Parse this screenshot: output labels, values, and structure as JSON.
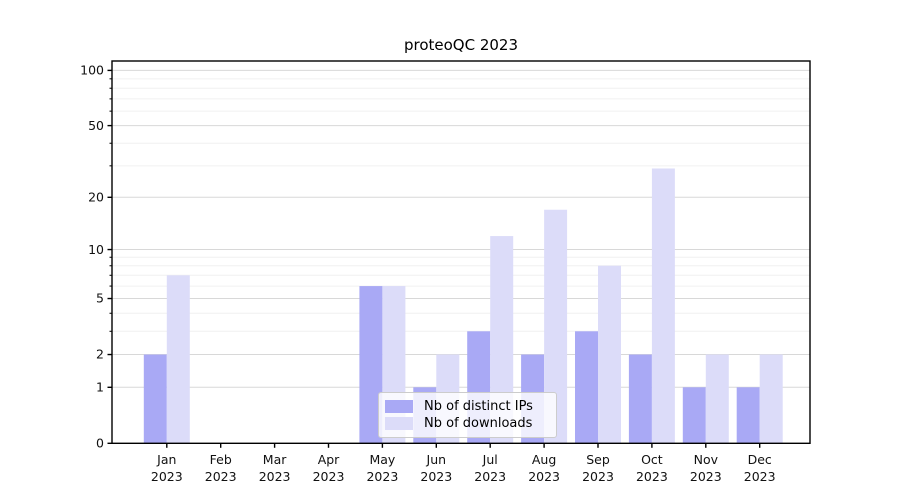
{
  "chart_data": {
    "type": "bar",
    "title": "proteoQC 2023",
    "categories": [
      "Jan 2023",
      "Feb 2023",
      "Mar 2023",
      "Apr 2023",
      "May 2023",
      "Jun 2023",
      "Jul 2023",
      "Aug 2023",
      "Sep 2023",
      "Oct 2023",
      "Nov 2023",
      "Dec 2023"
    ],
    "series": [
      {
        "name": "Nb of distinct IPs",
        "color": "#a9a9f5",
        "values": [
          2,
          0,
          0,
          0,
          6,
          1,
          3,
          2,
          3,
          2,
          1,
          1
        ]
      },
      {
        "name": "Nb of downloads",
        "color": "#dcdcf9",
        "values": [
          7,
          0,
          0,
          0,
          6,
          2,
          12,
          17,
          8,
          29,
          2,
          2
        ]
      }
    ],
    "xlabel": "",
    "ylabel": "",
    "yscale": "log1p",
    "ylim": [
      0,
      112
    ],
    "ytick_labels": [
      0,
      1,
      2,
      5,
      10,
      20,
      50,
      100
    ],
    "ytick_minor": [
      3,
      4,
      6,
      7,
      8,
      9,
      30,
      40,
      60,
      70,
      80,
      90
    ],
    "grid": true,
    "legend_position": "lower center",
    "colors": {
      "major_grid": "#d8d8d8",
      "minor_grid": "#f0f0f0",
      "spine": "#000000",
      "tick_text": "#111111",
      "legend_border": "#cccccc"
    }
  }
}
